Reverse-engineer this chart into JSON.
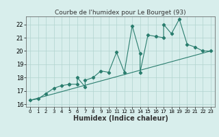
{
  "title": "Courbe de l'humidex pour Le Bourget (93)",
  "xlabel": "Humidex (Indice chaleur)",
  "ylabel": "",
  "line_color": "#2a7d6e",
  "bg_color": "#d8eeec",
  "grid_color": "#b0d4cf",
  "xlim": [
    -0.5,
    23.5
  ],
  "ylim": [
    15.8,
    22.6
  ],
  "yticks": [
    16,
    17,
    18,
    19,
    20,
    21,
    22
  ],
  "xticks": [
    0,
    1,
    2,
    3,
    4,
    5,
    6,
    7,
    8,
    9,
    10,
    11,
    12,
    13,
    14,
    15,
    16,
    17,
    18,
    19,
    20,
    21,
    22,
    23
  ],
  "data_x": [
    0,
    1,
    2,
    3,
    4,
    5,
    5,
    6,
    6,
    7,
    7,
    8,
    9,
    10,
    11,
    12,
    13,
    14,
    14,
    15,
    16,
    17,
    17,
    18,
    19,
    20,
    21,
    22,
    23
  ],
  "data_y": [
    16.3,
    16.4,
    16.8,
    17.2,
    17.4,
    17.5,
    17.5,
    17.5,
    18.0,
    17.3,
    17.8,
    18.0,
    18.5,
    18.4,
    19.9,
    18.4,
    21.9,
    19.8,
    18.4,
    21.2,
    21.1,
    21.0,
    22.0,
    21.3,
    22.4,
    20.5,
    20.3,
    20.0,
    20.0
  ],
  "trend_x": [
    0,
    23
  ],
  "trend_y": [
    16.3,
    20.0
  ],
  "marker": "D",
  "markersize": 2.2,
  "linewidth": 0.8,
  "title_fontsize": 6.5,
  "label_fontsize": 7.0,
  "tick_fontsize": 6.0
}
